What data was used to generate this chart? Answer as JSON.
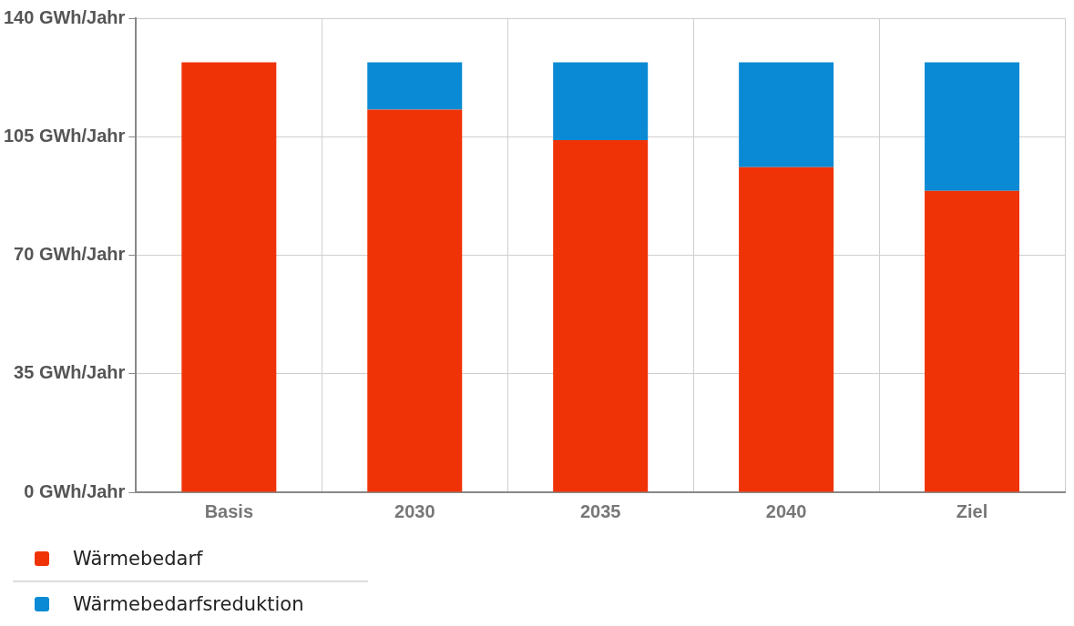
{
  "chart_data": {
    "type": "bar",
    "stacked": true,
    "categories": [
      "Basis",
      "2030",
      "2035",
      "2040",
      "Ziel"
    ],
    "series": [
      {
        "name": "Wärmebedarf",
        "color": "#f03306",
        "values": [
          127,
          113,
          104,
          96,
          89
        ]
      },
      {
        "name": "Wärmebedarfsreduktion",
        "color": "#0a8ad4",
        "values": [
          0,
          14,
          23,
          31,
          38
        ]
      }
    ],
    "ylim": [
      0,
      140
    ],
    "yticks": [
      {
        "value": 0,
        "label": "0 GWh/Jahr"
      },
      {
        "value": 35,
        "label": "35 GWh/Jahr"
      },
      {
        "value": 70,
        "label": "70 GWh/Jahr"
      },
      {
        "value": 105,
        "label": "105 GWh/Jahr"
      },
      {
        "value": 140,
        "label": "140 GWh/Jahr"
      }
    ],
    "grid": true,
    "legend": "bottom"
  }
}
